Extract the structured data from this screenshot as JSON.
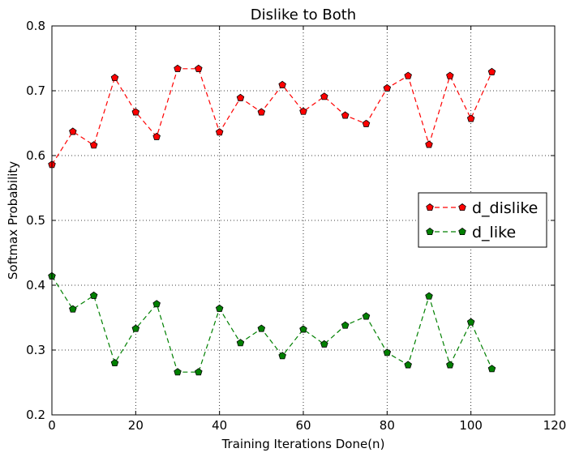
{
  "chart_data": {
    "type": "line",
    "title": "Dislike to Both",
    "xlabel": "Training Iterations Done(n)",
    "ylabel": "Softmax Probability",
    "xlim": [
      0,
      120
    ],
    "ylim": [
      0.2,
      0.8
    ],
    "xticks": [
      0,
      20,
      40,
      60,
      80,
      100,
      120
    ],
    "yticks": [
      0.2,
      0.3,
      0.4,
      0.5,
      0.6,
      0.7,
      0.8
    ],
    "xtick_labels": [
      "0",
      "20",
      "40",
      "60",
      "80",
      "100",
      "120"
    ],
    "ytick_labels": [
      "0.2",
      "0.3",
      "0.4",
      "0.5",
      "0.6",
      "0.7",
      "0.8"
    ],
    "grid": true,
    "legend_position": "center-right",
    "x": [
      0,
      5,
      10,
      15,
      20,
      25,
      30,
      35,
      40,
      45,
      50,
      55,
      60,
      65,
      70,
      75,
      80,
      85,
      90,
      95,
      100,
      105
    ],
    "series": [
      {
        "name": "d_dislike",
        "color": "#ff0000",
        "marker_fill": "#ff0000",
        "values": [
          0.586,
          0.637,
          0.616,
          0.72,
          0.667,
          0.629,
          0.734,
          0.734,
          0.636,
          0.689,
          0.667,
          0.709,
          0.668,
          0.691,
          0.662,
          0.649,
          0.704,
          0.723,
          0.617,
          0.723,
          0.657,
          0.729
        ]
      },
      {
        "name": "d_like",
        "color": "#008000",
        "marker_fill": "#008000",
        "values": [
          0.414,
          0.363,
          0.384,
          0.28,
          0.333,
          0.371,
          0.266,
          0.266,
          0.364,
          0.311,
          0.333,
          0.291,
          0.332,
          0.309,
          0.338,
          0.352,
          0.296,
          0.277,
          0.383,
          0.277,
          0.343,
          0.271
        ]
      }
    ]
  }
}
